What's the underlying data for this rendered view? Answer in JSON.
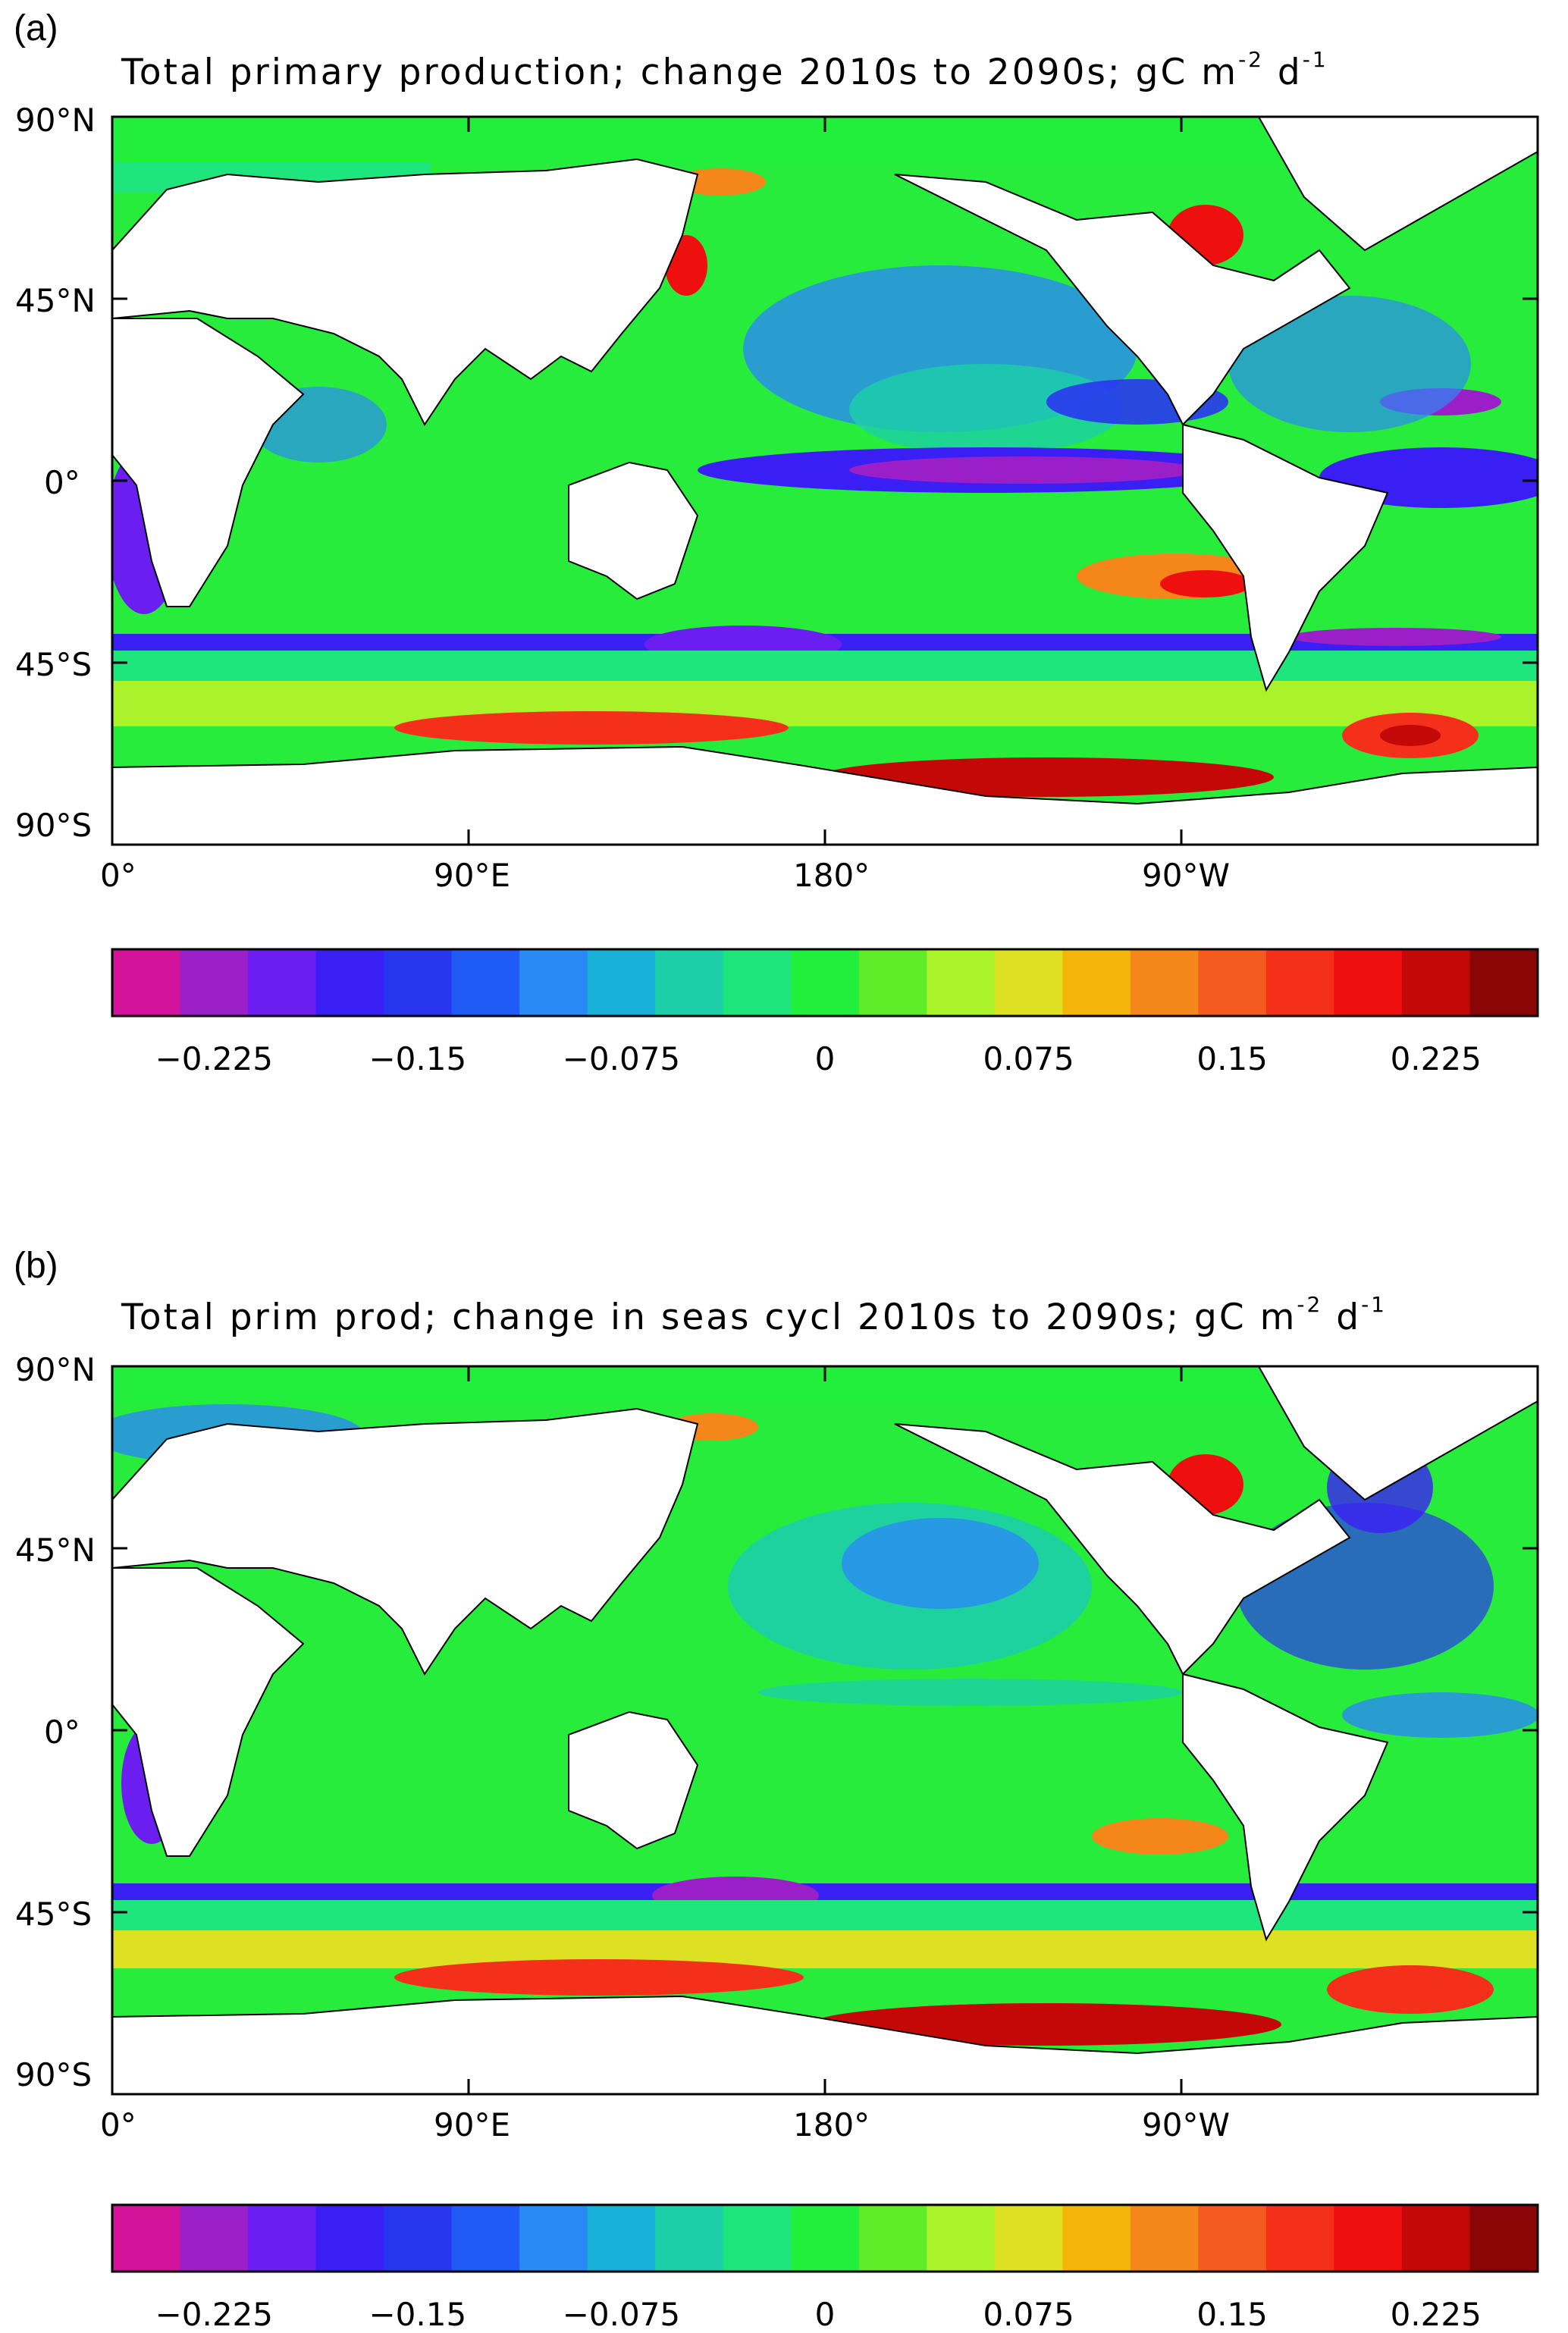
{
  "panels": [
    {
      "letter": "(a)",
      "title": "Total primary production; change 2010s to 2090s; gC m",
      "unit_exp1": "-2",
      "unit_d": " d",
      "unit_exp2": "-1"
    },
    {
      "letter": "(b)",
      "title": "Total prim prod; change in seas cycl 2010s to 2090s; gC m",
      "unit_exp1": "-2",
      "unit_d": " d",
      "unit_exp2": "-1"
    }
  ],
  "lat_labels": [
    "90°N",
    "45°N",
    "0°",
    "45°S",
    "90°S"
  ],
  "lon_labels": [
    "0°",
    "90°E",
    "180°",
    "90°W"
  ],
  "colorbar": {
    "colors": [
      "#d3149a",
      "#9b1fc8",
      "#6a1ff0",
      "#3a1ff5",
      "#2836f0",
      "#1e5cf5",
      "#2a8af5",
      "#18b0d8",
      "#1ccfa8",
      "#1ee57c",
      "#22ee3c",
      "#5fec28",
      "#aaf22a",
      "#dde023",
      "#f5b40a",
      "#f5861a",
      "#f55a1f",
      "#f5301a",
      "#ee0f0f",
      "#c40808",
      "#8a0606"
    ],
    "tick_labels": [
      "−0.225",
      "−0.15",
      "−0.075",
      "0",
      "0.075",
      "0.15",
      "0.225"
    ],
    "range": [
      -0.2625,
      0.2625
    ]
  }
}
